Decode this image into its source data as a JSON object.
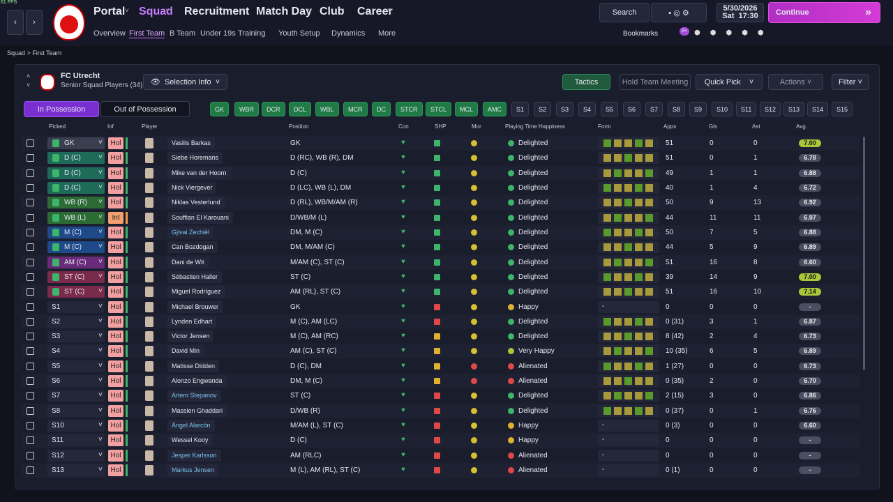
{
  "fps": "61 FPS",
  "nav": {
    "main": [
      "Portal",
      "Squad",
      "Recruitment",
      "Match Day",
      "Club",
      "Career"
    ],
    "sub": [
      "Overview",
      "First Team",
      "B Team",
      "Under 19s",
      "Training",
      "Youth Setup",
      "Dynamics",
      "More"
    ]
  },
  "toolbar": {
    "search": "Search",
    "date": "5/30/2026",
    "day": "Sat",
    "time": "17:30",
    "continue": "Continue",
    "bookmarks": "Bookmarks",
    "badge": "9+"
  },
  "breadcrumb": [
    "Squad",
    "First Team"
  ],
  "team": {
    "name": "FC Utrecht",
    "subtitle": "Senior Squad Players (34)"
  },
  "buttons": {
    "selection_info": "Selection Info",
    "tactics": "Tactics",
    "meeting": "Hold Team Meeting",
    "quick_pick": "Quick Pick",
    "actions": "Actions",
    "filter": "Filter"
  },
  "tabs": [
    "In Possession",
    "Out of Possession"
  ],
  "positions": [
    "GK",
    "WBR",
    "DCR",
    "DCL",
    "WBL",
    "MCR",
    "DC",
    "STCR",
    "STCL",
    "MCL",
    "AMC",
    "S1",
    "S2",
    "S3",
    "S4",
    "S5",
    "S6",
    "S7",
    "S8",
    "S9",
    "S10",
    "S11",
    "S12",
    "S13",
    "S14",
    "S15"
  ],
  "table": {
    "headers": [
      "Picked",
      "Inf",
      "Player",
      "Position",
      "Con",
      "SHP",
      "Mor",
      "Playing Time Happiness",
      "Form",
      "Apps",
      "Gls",
      "Ast",
      "Avg."
    ],
    "rows": [
      {
        "picked": "GK",
        "inf": "Hol",
        "player": "Vasilis Barkas",
        "position": "GK",
        "happiness": "Delighted",
        "apps": 51,
        "gls": 0,
        "ast": 0,
        "avg": "7.00"
      },
      {
        "picked": "D (C)",
        "inf": "Hol",
        "player": "Siebe Horemans",
        "position": "D (RC), WB (R), DM",
        "happiness": "Delighted",
        "apps": 51,
        "gls": 0,
        "ast": 1,
        "avg": "6.78"
      },
      {
        "picked": "D (C)",
        "inf": "Hol",
        "player": "Mike van der Hoorn",
        "position": "D (C)",
        "happiness": "Delighted",
        "apps": 49,
        "gls": 1,
        "ast": 1,
        "avg": "6.88"
      },
      {
        "picked": "D (C)",
        "inf": "Hol",
        "player": "Nick Viergever",
        "position": "D (LC), WB (L), DM",
        "happiness": "Delighted",
        "apps": 40,
        "gls": 1,
        "ast": 4,
        "avg": "6.72"
      },
      {
        "picked": "WB (R)",
        "inf": "Hol",
        "player": "Niklas Vesterlund",
        "position": "D (RL), WB/M/AM (R)",
        "happiness": "Delighted",
        "apps": 50,
        "gls": 9,
        "ast": 13,
        "avg": "6.92"
      },
      {
        "picked": "WB (L)",
        "inf": "Int",
        "player": "Souffian El Karouani",
        "position": "D/WB/M (L)",
        "happiness": "Delighted",
        "apps": 44,
        "gls": 11,
        "ast": 11,
        "avg": "6.97"
      },
      {
        "picked": "M (C)",
        "inf": "Hol",
        "player": "Gjivai Zechiël",
        "position": "DM, M (C)",
        "happiness": "Delighted",
        "apps": 50,
        "gls": 7,
        "ast": 5,
        "avg": "6.88"
      },
      {
        "picked": "M (C)",
        "inf": "Hol",
        "player": "Can Bozdogan",
        "position": "DM, M/AM (C)",
        "happiness": "Delighted",
        "apps": 44,
        "gls": 5,
        "ast": 9,
        "avg": "6.89"
      },
      {
        "picked": "AM (C)",
        "inf": "Hol",
        "player": "Dani de Wit",
        "position": "M/AM (C), ST (C)",
        "happiness": "Delighted",
        "apps": 51,
        "gls": 16,
        "ast": 8,
        "avg": "6.60"
      },
      {
        "picked": "ST (C)",
        "inf": "Hol",
        "player": "Sébastien Haller",
        "position": "ST (C)",
        "happiness": "Delighted",
        "apps": 39,
        "gls": 14,
        "ast": 9,
        "avg": "7.00"
      },
      {
        "picked": "ST (C)",
        "inf": "Hol",
        "player": "Miguel Rodríguez",
        "position": "AM (RL), ST (C)",
        "happiness": "Delighted",
        "apps": 51,
        "gls": 16,
        "ast": 10,
        "avg": "7.14"
      },
      {
        "picked": "S1",
        "inf": "Hol",
        "player": "Michael Brouwer",
        "position": "GK",
        "happiness": "Happy",
        "form": "-",
        "apps": 0,
        "gls": 0,
        "ast": 0,
        "avg": "-"
      },
      {
        "picked": "S2",
        "inf": "Hol",
        "player": "Lynden Edhart",
        "position": "M (C), AM (LC)",
        "happiness": "Delighted",
        "apps": "0 (31)",
        "gls": 3,
        "ast": 1,
        "avg": "6.87"
      },
      {
        "picked": "S3",
        "inf": "Hol",
        "player": "Victor Jensen",
        "position": "M (C), AM (RC)",
        "happiness": "Delighted",
        "apps": "8 (42)",
        "gls": 2,
        "ast": 4,
        "avg": "6.73"
      },
      {
        "picked": "S4",
        "inf": "Hol",
        "player": "David Min",
        "position": "AM (C), ST (C)",
        "happiness": "Very Happy",
        "apps": "10 (35)",
        "gls": 6,
        "ast": 5,
        "avg": "6.89"
      },
      {
        "picked": "S5",
        "inf": "Hol",
        "player": "Matisse Didden",
        "position": "D (C), DM",
        "happiness": "Alienated",
        "apps": "1 (27)",
        "gls": 0,
        "ast": 0,
        "avg": "6.73"
      },
      {
        "picked": "S6",
        "inf": "Hol",
        "player": "Alonzo Engwanda",
        "position": "DM, M (C)",
        "happiness": "Alienated",
        "apps": "0 (35)",
        "gls": 2,
        "ast": 0,
        "avg": "6.70"
      },
      {
        "picked": "S7",
        "inf": "Hol",
        "player": "Artem Stepanov",
        "position": "ST (C)",
        "happiness": "Delighted",
        "apps": "2 (15)",
        "gls": 3,
        "ast": 0,
        "avg": "6.86"
      },
      {
        "picked": "S8",
        "inf": "Hol",
        "player": "Massien Ghaddari",
        "position": "D/WB (R)",
        "happiness": "Delighted",
        "apps": "0 (37)",
        "gls": 0,
        "ast": 1,
        "avg": "6.76"
      },
      {
        "picked": "S10",
        "inf": "Hol",
        "player": "Ángel Alarcón",
        "position": "M/AM (L), ST (C)",
        "happiness": "Happy",
        "form": "-",
        "apps": "0 (3)",
        "gls": 0,
        "ast": 0,
        "avg": "6.60"
      },
      {
        "picked": "S11",
        "inf": "Hol",
        "player": "Wessel Kooy",
        "position": "D (C)",
        "happiness": "Happy",
        "form": "-",
        "apps": 0,
        "gls": 0,
        "ast": 0,
        "avg": "-"
      },
      {
        "picked": "S12",
        "inf": "Hol",
        "player": "Jesper Karlsson",
        "position": "AM (RLC)",
        "happiness": "Alienated",
        "form": "-",
        "apps": 0,
        "gls": 0,
        "ast": 0,
        "avg": "-"
      },
      {
        "picked": "S13",
        "inf": "Hol",
        "player": "Markus Jensen",
        "position": "M (L), AM (RL), ST (C)",
        "happiness": "Alienated",
        "form": "-",
        "apps": "0 (1)",
        "gls": 0,
        "ast": 0,
        "avg": "-"
      }
    ]
  }
}
